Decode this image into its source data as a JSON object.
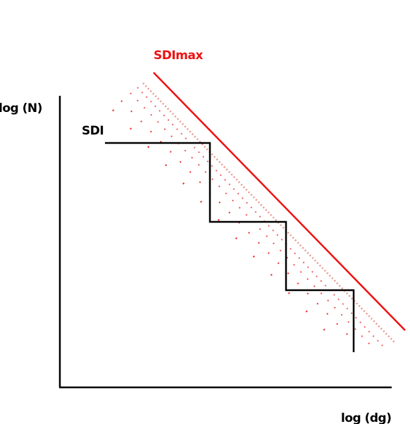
{
  "labels": {
    "y_axis": "log (N)",
    "x_axis": "log (dg)",
    "sdi": "SDI",
    "sdi_max": "SDImax"
  },
  "colors": {
    "axis": "#000000",
    "sdi_line": "#000000",
    "sdi_max_line": "#ee1111",
    "dotted_lines": "#ee3333",
    "dotted_light": "#e89a90",
    "sdi_max_label": "#ee1111"
  }
}
